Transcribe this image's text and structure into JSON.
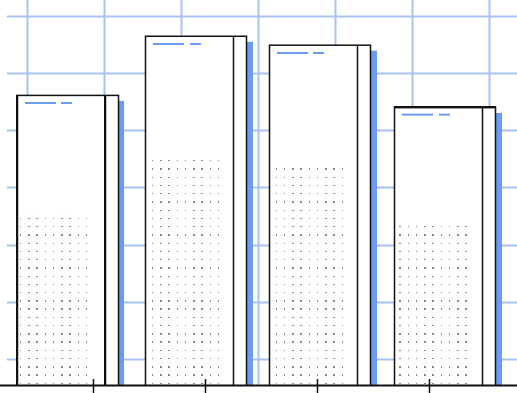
{
  "colors": {
    "background": "#ffffff",
    "grid": "#a9c3f0",
    "accent": "#6a9cf4",
    "outline": "#111111",
    "dots": "#333333"
  },
  "chart_data": {
    "type": "bar",
    "title": "",
    "xlabel": "",
    "ylabel": "",
    "grid": true,
    "legend": "none",
    "categories": [
      "",
      "",
      "",
      ""
    ],
    "ylim": [
      0,
      6
    ],
    "series": [
      {
        "values": [
          4.9,
          5.9,
          5.75,
          4.7
        ]
      },
      {
        "values": [
          2.95,
          3.9,
          3.75,
          2.75
        ]
      }
    ]
  }
}
